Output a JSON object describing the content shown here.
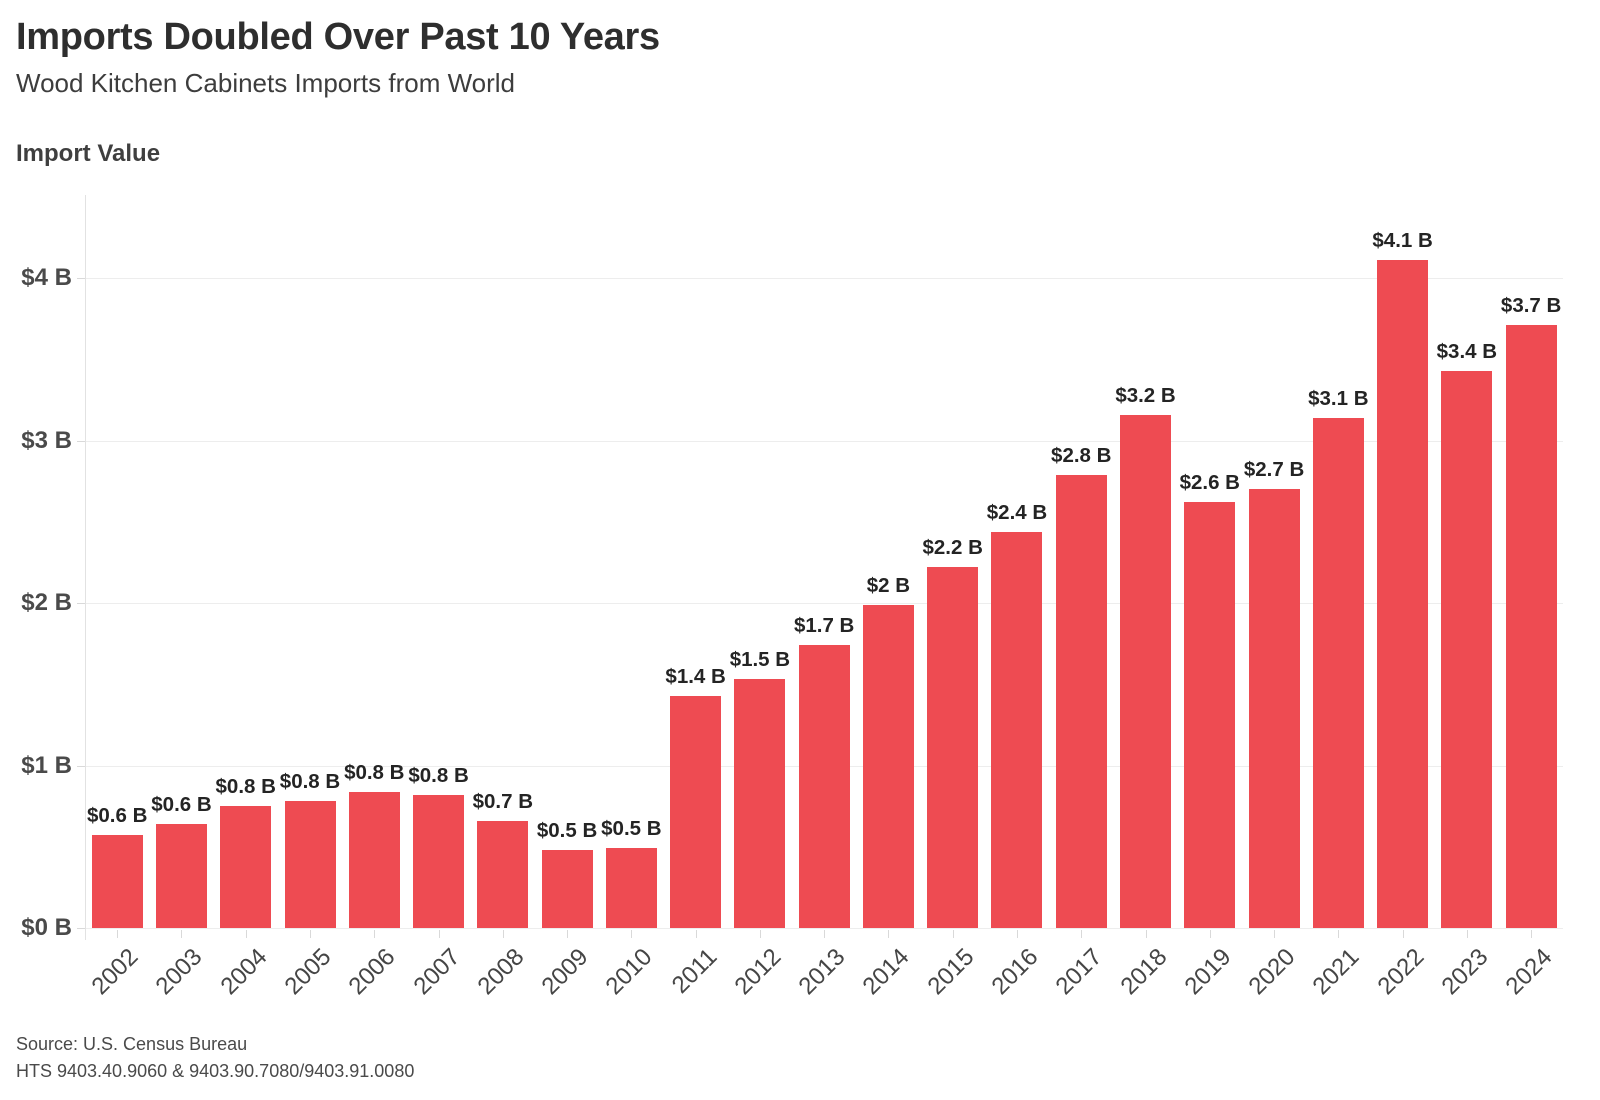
{
  "page": {
    "title": "Imports Doubled Over Past 10 Years",
    "subtitle": "Wood Kitchen Cabinets Imports from World"
  },
  "footer": {
    "source": "Source: U.S. Census Bureau",
    "hts": "HTS 9403.40.9060 & 9403.90.7080/9403.91.0080"
  },
  "colors": {
    "bar": "#EE4B52",
    "gridline": "#ededed",
    "axis_line": "#e2e2e2",
    "tick": "#d9d9d9",
    "title_text": "#2e2e2e",
    "value_label_text": "#242424",
    "axis_label_text": "#4a4a4a"
  },
  "chart_data": {
    "type": "bar",
    "title": "Imports Doubled Over Past 10 Years",
    "subtitle": "Wood Kitchen Cabinets Imports from World",
    "ylabel": "Import Value",
    "xlabel": "",
    "categories": [
      "2002",
      "2003",
      "2004",
      "2005",
      "2006",
      "2007",
      "2008",
      "2009",
      "2010",
      "2011",
      "2012",
      "2013",
      "2014",
      "2015",
      "2016",
      "2017",
      "2018",
      "2019",
      "2020",
      "2021",
      "2022",
      "2023",
      "2024"
    ],
    "values": [
      0.57,
      0.64,
      0.75,
      0.78,
      0.84,
      0.82,
      0.66,
      0.48,
      0.49,
      1.43,
      1.53,
      1.74,
      1.99,
      2.22,
      2.44,
      2.79,
      3.16,
      2.62,
      2.7,
      3.14,
      4.11,
      3.43,
      3.71
    ],
    "bar_labels": [
      "$0.6 B",
      "$0.6 B",
      "$0.8 B",
      "$0.8 B",
      "$0.8 B",
      "$0.8 B",
      "$0.7 B",
      "$0.5 B",
      "$0.5 B",
      "$1.4 B",
      "$1.5 B",
      "$1.7 B",
      "$2 B",
      "$2.2 B",
      "$2.4 B",
      "$2.8 B",
      "$3.2 B",
      "$2.6 B",
      "$2.7 B",
      "$3.1 B",
      "$4.1 B",
      "$3.4 B",
      "$3.7 B"
    ],
    "y_ticks": {
      "labels": [
        "$0 B",
        "$1 B",
        "$2 B",
        "$3 B",
        "$4 B"
      ],
      "values": [
        0,
        1,
        2,
        3,
        4
      ]
    },
    "ylim": [
      0,
      4.5
    ],
    "grid": true,
    "legend": "none",
    "bar_color": "#EE4B52"
  }
}
